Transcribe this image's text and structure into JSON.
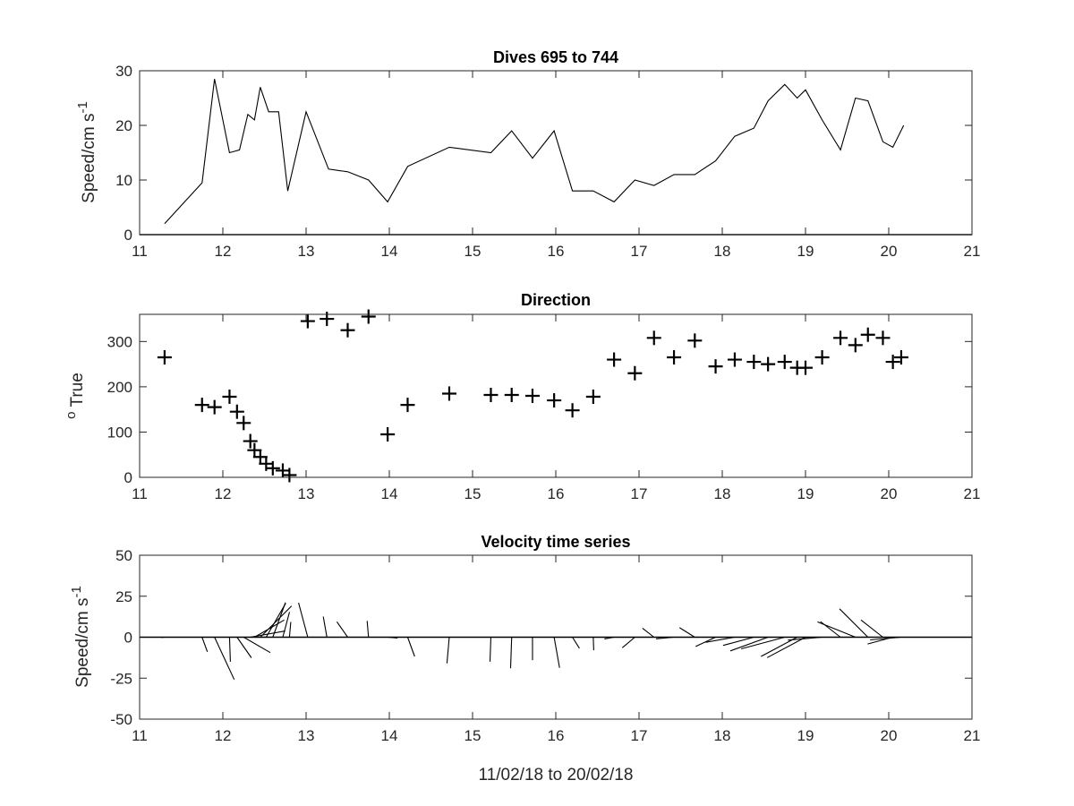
{
  "chart_data": [
    {
      "type": "line",
      "title": "Dives 695 to 744",
      "ylabel_main": "Speed/cm s",
      "ylabel_sup": "-1",
      "xlim": [
        11,
        21
      ],
      "ylim": [
        0,
        30
      ],
      "xticks": [
        "11",
        "12",
        "13",
        "14",
        "15",
        "16",
        "17",
        "18",
        "19",
        "20",
        "21"
      ],
      "yticks": [
        "0",
        "10",
        "20",
        "30"
      ],
      "series": [
        {
          "x": [
            11.3,
            11.75,
            11.9,
            12.08,
            12.2,
            12.3,
            12.38,
            12.45,
            12.55,
            12.67,
            12.78,
            13.0,
            13.27,
            13.5,
            13.75,
            13.98,
            14.22,
            14.72,
            15.22,
            15.47,
            15.72,
            15.98,
            16.2,
            16.45,
            16.7,
            16.95,
            17.18,
            17.42,
            17.67,
            17.92,
            18.15,
            18.38,
            18.55,
            18.75,
            18.9,
            19.0,
            19.2,
            19.42,
            19.6,
            19.75,
            19.93,
            20.05,
            20.18
          ],
          "y": [
            2,
            9.5,
            28.5,
            15,
            15.5,
            22,
            21,
            27,
            22.5,
            22.5,
            8,
            22.5,
            12,
            11.5,
            10,
            6,
            12.5,
            16,
            15,
            19,
            14,
            19,
            8,
            8,
            6,
            10,
            9,
            11,
            11,
            13.5,
            18,
            19.5,
            24.5,
            27.5,
            25,
            26.5,
            21,
            15.5,
            25,
            24.5,
            17,
            16,
            20
          ]
        }
      ]
    },
    {
      "type": "scatter",
      "title": "Direction",
      "ylabel_sup": "o",
      "ylabel_main": " True",
      "xlim": [
        11,
        21
      ],
      "ylim": [
        0,
        360
      ],
      "xticks": [
        "11",
        "12",
        "13",
        "14",
        "15",
        "16",
        "17",
        "18",
        "19",
        "20",
        "21"
      ],
      "yticks": [
        "0",
        "100",
        "200",
        "300"
      ],
      "series": [
        {
          "x": [
            11.3,
            11.75,
            11.9,
            12.08,
            12.17,
            12.25,
            12.33,
            12.38,
            12.45,
            12.52,
            12.6,
            12.72,
            12.8,
            13.02,
            13.25,
            13.5,
            13.75,
            13.98,
            14.22,
            14.72,
            15.22,
            15.47,
            15.72,
            15.98,
            16.2,
            16.45,
            16.7,
            16.95,
            17.18,
            17.42,
            17.67,
            17.92,
            18.15,
            18.38,
            18.55,
            18.75,
            18.9,
            19.0,
            19.2,
            19.42,
            19.6,
            19.75,
            19.93,
            20.05,
            20.15
          ],
          "y": [
            265,
            160,
            155,
            178,
            145,
            120,
            80,
            60,
            45,
            30,
            20,
            15,
            5,
            345,
            350,
            325,
            355,
            95,
            160,
            185,
            182,
            182,
            180,
            170,
            148,
            178,
            260,
            230,
            308,
            265,
            302,
            245,
            260,
            255,
            250,
            255,
            242,
            242,
            265,
            308,
            292,
            315,
            308,
            255,
            265
          ]
        }
      ]
    },
    {
      "type": "stick",
      "title": "Velocity time series",
      "ylabel_main": "Speed/cm s",
      "ylabel_sup": "-1",
      "xlabel": "11/02/18 to 20/02/18",
      "xlim": [
        11,
        21
      ],
      "ylim": [
        -50,
        50
      ],
      "xticks": [
        "11",
        "12",
        "13",
        "14",
        "15",
        "16",
        "17",
        "18",
        "19",
        "20",
        "21"
      ],
      "yticks": [
        "-50",
        "-25",
        "0",
        "25",
        "50"
      ]
    }
  ]
}
